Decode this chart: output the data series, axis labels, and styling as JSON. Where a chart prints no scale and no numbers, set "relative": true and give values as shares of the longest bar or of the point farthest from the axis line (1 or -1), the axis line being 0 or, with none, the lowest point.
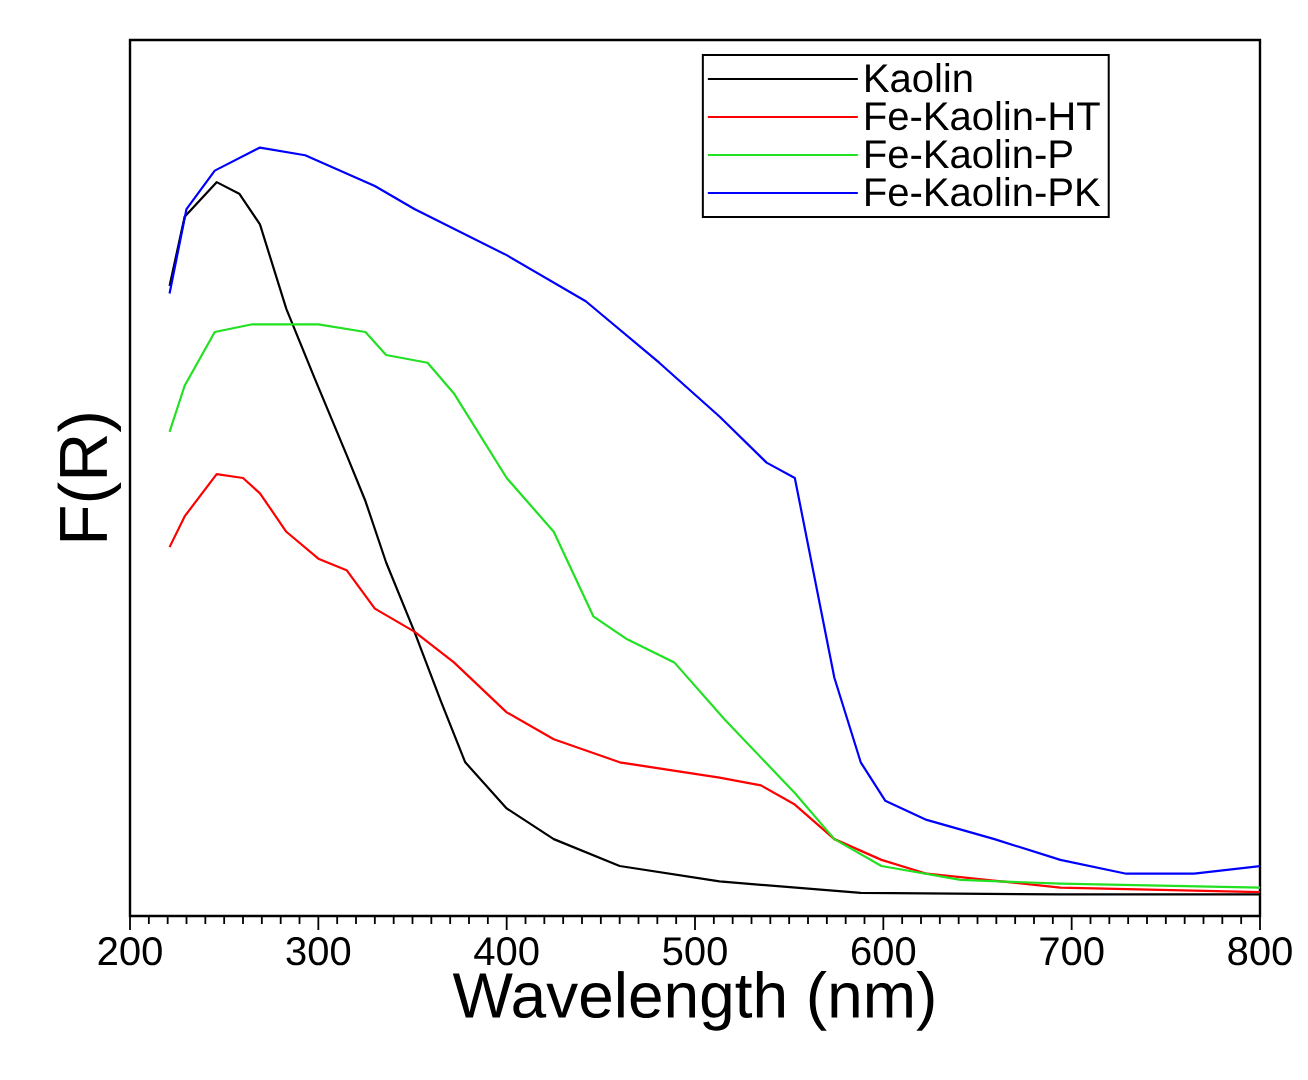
{
  "chart_data": {
    "type": "line",
    "xlabel": "Wavelength (nm)",
    "ylabel": "F(R)",
    "xlim": [
      200,
      800
    ],
    "xticks": [
      200,
      300,
      400,
      500,
      600,
      700,
      800
    ],
    "relative": true,
    "tick_labels": "x",
    "legend": "top right",
    "series": [
      {
        "name": "Kaolin",
        "color": "#000000",
        "x": [
          221,
          229,
          246,
          258,
          269,
          283,
          298,
          315,
          325,
          336,
          351,
          365,
          378,
          400,
          425,
          460,
          513,
          588,
          694,
          800
        ],
        "values": [
          0.82,
          0.91,
          0.955,
          0.94,
          0.9,
          0.79,
          0.7,
          0.6,
          0.54,
          0.46,
          0.37,
          0.28,
          0.2,
          0.14,
          0.1,
          0.065,
          0.045,
          0.03,
          0.028,
          0.028
        ]
      },
      {
        "name": "Fe-Kaolin-HT",
        "color": "#ff0000",
        "x": [
          221,
          229,
          246,
          260,
          269,
          283,
          300,
          315,
          330,
          351,
          372,
          400,
          425,
          460,
          513,
          535,
          553,
          574,
          599,
          623,
          694,
          800
        ],
        "values": [
          0.48,
          0.52,
          0.575,
          0.57,
          0.55,
          0.5,
          0.465,
          0.45,
          0.4,
          0.37,
          0.33,
          0.265,
          0.23,
          0.2,
          0.18,
          0.17,
          0.145,
          0.1,
          0.073,
          0.055,
          0.037,
          0.031
        ]
      },
      {
        "name": "Fe-Kaolin-P",
        "color": "#22e022",
        "x": [
          221,
          229,
          245,
          265,
          300,
          325,
          336,
          358,
          372,
          400,
          425,
          446,
          464,
          489,
          516,
          553,
          574,
          599,
          641,
          694,
          800
        ],
        "values": [
          0.63,
          0.69,
          0.76,
          0.77,
          0.77,
          0.76,
          0.73,
          0.72,
          0.68,
          0.57,
          0.5,
          0.39,
          0.36,
          0.33,
          0.255,
          0.16,
          0.1,
          0.065,
          0.047,
          0.042,
          0.037
        ]
      },
      {
        "name": "Fe-Kaolin-PK",
        "color": "#0000ff",
        "x": [
          221,
          230,
          245,
          269,
          293,
          330,
          351,
          400,
          442,
          481,
          513,
          538,
          553,
          574,
          588,
          601,
          623,
          659,
          694,
          729,
          765,
          800
        ],
        "values": [
          0.81,
          0.92,
          0.97,
          1.0,
          0.99,
          0.95,
          0.92,
          0.86,
          0.8,
          0.72,
          0.65,
          0.59,
          0.57,
          0.31,
          0.2,
          0.15,
          0.125,
          0.1,
          0.073,
          0.055,
          0.055,
          0.065
        ]
      }
    ]
  }
}
